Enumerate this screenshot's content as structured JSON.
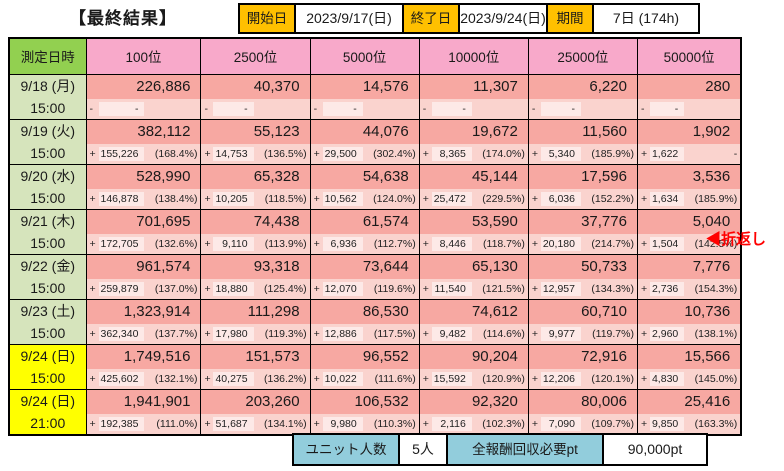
{
  "title": "【最終結果】",
  "info_bar": {
    "start_label": "開始日",
    "start_value": "2023/9/17(日)",
    "end_label": "終了日",
    "end_value": "2023/9/24(日)",
    "period_label": "期間",
    "period_value": "7日 (174h)"
  },
  "table": {
    "corner_header": "測定日時",
    "columns": [
      "100位",
      "2500位",
      "5000位",
      "10000位",
      "25000位",
      "50000位"
    ],
    "rows": [
      {
        "date": "9/18 (月)",
        "time": "15:00",
        "highlight": false,
        "cells": [
          {
            "v": "226,886",
            "s": "-",
            "d": "-",
            "p": ""
          },
          {
            "v": "40,370",
            "s": "-",
            "d": "-",
            "p": ""
          },
          {
            "v": "14,576",
            "s": "-",
            "d": "-",
            "p": ""
          },
          {
            "v": "11,307",
            "s": "-",
            "d": "-",
            "p": ""
          },
          {
            "v": "6,220",
            "s": "-",
            "d": "-",
            "p": ""
          },
          {
            "v": "280",
            "s": "-",
            "d": "-",
            "p": ""
          }
        ]
      },
      {
        "date": "9/19 (火)",
        "time": "15:00",
        "highlight": false,
        "cells": [
          {
            "v": "382,112",
            "s": "+",
            "d": "155,226",
            "p": "(168.4%)"
          },
          {
            "v": "55,123",
            "s": "+",
            "d": "14,753",
            "p": "(136.5%)"
          },
          {
            "v": "44,076",
            "s": "+",
            "d": "29,500",
            "p": "(302.4%)"
          },
          {
            "v": "19,672",
            "s": "+",
            "d": "8,365",
            "p": "(174.0%)"
          },
          {
            "v": "11,560",
            "s": "+",
            "d": "5,340",
            "p": "(185.9%)"
          },
          {
            "v": "1,902",
            "s": "+",
            "d": "1,622",
            "p": "-"
          }
        ]
      },
      {
        "date": "9/20 (水)",
        "time": "15:00",
        "highlight": false,
        "cells": [
          {
            "v": "528,990",
            "s": "+",
            "d": "146,878",
            "p": "(138.4%)"
          },
          {
            "v": "65,328",
            "s": "+",
            "d": "10,205",
            "p": "(118.5%)"
          },
          {
            "v": "54,638",
            "s": "+",
            "d": "10,562",
            "p": "(124.0%)"
          },
          {
            "v": "45,144",
            "s": "+",
            "d": "25,472",
            "p": "(229.5%)"
          },
          {
            "v": "17,596",
            "s": "+",
            "d": "6,036",
            "p": "(152.2%)"
          },
          {
            "v": "3,536",
            "s": "+",
            "d": "1,634",
            "p": "(185.9%)"
          }
        ]
      },
      {
        "date": "9/21 (木)",
        "time": "15:00",
        "highlight": false,
        "cells": [
          {
            "v": "701,695",
            "s": "+",
            "d": "172,705",
            "p": "(132.6%)"
          },
          {
            "v": "74,438",
            "s": "+",
            "d": "9,110",
            "p": "(113.9%)"
          },
          {
            "v": "61,574",
            "s": "+",
            "d": "6,936",
            "p": "(112.7%)"
          },
          {
            "v": "53,590",
            "s": "+",
            "d": "8,446",
            "p": "(118.7%)"
          },
          {
            "v": "37,776",
            "s": "+",
            "d": "20,180",
            "p": "(214.7%)"
          },
          {
            "v": "5,040",
            "s": "+",
            "d": "1,504",
            "p": "(142.5%)"
          }
        ]
      },
      {
        "date": "9/22 (金)",
        "time": "15:00",
        "highlight": false,
        "cells": [
          {
            "v": "961,574",
            "s": "+",
            "d": "259,879",
            "p": "(137.0%)"
          },
          {
            "v": "93,318",
            "s": "+",
            "d": "18,880",
            "p": "(125.4%)"
          },
          {
            "v": "73,644",
            "s": "+",
            "d": "12,070",
            "p": "(119.6%)"
          },
          {
            "v": "65,130",
            "s": "+",
            "d": "11,540",
            "p": "(121.5%)"
          },
          {
            "v": "50,733",
            "s": "+",
            "d": "12,957",
            "p": "(134.3%)"
          },
          {
            "v": "7,776",
            "s": "+",
            "d": "2,736",
            "p": "(154.3%)"
          }
        ]
      },
      {
        "date": "9/23 (土)",
        "time": "15:00",
        "highlight": false,
        "cells": [
          {
            "v": "1,323,914",
            "s": "+",
            "d": "362,340",
            "p": "(137.7%)"
          },
          {
            "v": "111,298",
            "s": "+",
            "d": "17,980",
            "p": "(119.3%)"
          },
          {
            "v": "86,530",
            "s": "+",
            "d": "12,886",
            "p": "(117.5%)"
          },
          {
            "v": "74,612",
            "s": "+",
            "d": "9,482",
            "p": "(114.6%)"
          },
          {
            "v": "60,710",
            "s": "+",
            "d": "9,977",
            "p": "(119.7%)"
          },
          {
            "v": "10,736",
            "s": "+",
            "d": "2,960",
            "p": "(138.1%)"
          }
        ]
      },
      {
        "date": "9/24 (日)",
        "time": "15:00",
        "highlight": true,
        "cells": [
          {
            "v": "1,749,516",
            "s": "+",
            "d": "425,602",
            "p": "(132.1%)"
          },
          {
            "v": "151,573",
            "s": "+",
            "d": "40,275",
            "p": "(136.2%)"
          },
          {
            "v": "96,552",
            "s": "+",
            "d": "10,022",
            "p": "(111.6%)"
          },
          {
            "v": "90,204",
            "s": "+",
            "d": "15,592",
            "p": "(120.9%)"
          },
          {
            "v": "72,916",
            "s": "+",
            "d": "12,206",
            "p": "(120.1%)"
          },
          {
            "v": "15,566",
            "s": "+",
            "d": "4,830",
            "p": "(145.0%)"
          }
        ]
      },
      {
        "date": "9/24 (日)",
        "time": "21:00",
        "highlight": true,
        "cells": [
          {
            "v": "1,941,901",
            "s": "+",
            "d": "192,385",
            "p": "(111.0%)"
          },
          {
            "v": "203,260",
            "s": "+",
            "d": "51,687",
            "p": "(134.1%)"
          },
          {
            "v": "106,532",
            "s": "+",
            "d": "9,980",
            "p": "(110.3%)"
          },
          {
            "v": "92,320",
            "s": "+",
            "d": "2,116",
            "p": "(102.3%)"
          },
          {
            "v": "80,006",
            "s": "+",
            "d": "7,090",
            "p": "(109.7%)"
          },
          {
            "v": "25,416",
            "s": "+",
            "d": "9,850",
            "p": "(163.3%)"
          }
        ]
      }
    ]
  },
  "annotation": {
    "text": "◀折返し",
    "row_index": 3
  },
  "footer": {
    "unit_label": "ユニット人数",
    "unit_value": "5人",
    "reward_label": "全報酬回収必要pt",
    "reward_value": "90,000pt"
  },
  "colors": {
    "info_label_bg": "#FFC000",
    "column_header_bg": "#F8A9CA",
    "value_cell_bg": "#F7A8A2",
    "delta_row_bg": "#FAD3CE",
    "delta_value_bg": "#FDE9E7",
    "corner_header_bg": "#92D050",
    "date_cell_bg": "#D6E4BC",
    "final_date_bg": "#FFFF00",
    "footer_label_bg": "#92CDDC",
    "annotation_color": "#FF0000"
  }
}
